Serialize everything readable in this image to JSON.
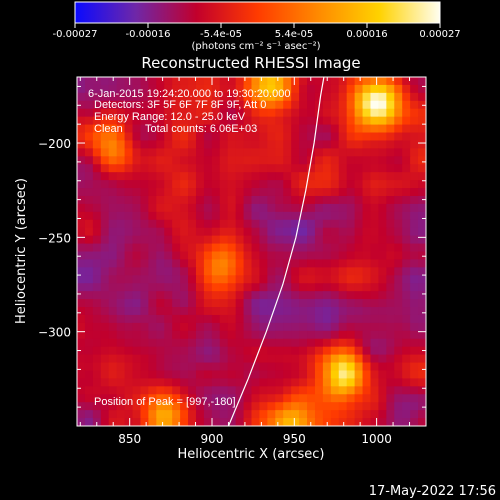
{
  "chart_data": {
    "type": "heatmap",
    "title": "Reconstructed RHESSI Image",
    "xlabel": "Heliocentric X (arcsec)",
    "ylabel": "Heliocentric Y (arcsec)",
    "xlim": [
      818,
      1030
    ],
    "ylim": [
      -350,
      -165
    ],
    "x_ticks": [
      850,
      900,
      950,
      1000
    ],
    "y_ticks": [
      -200,
      -250,
      -300
    ],
    "colorbar": {
      "range": [
        -0.00027,
        0.00027
      ],
      "tick_labels": [
        "-0.00027",
        "-0.00016",
        "-5.4e-05",
        "5.4e-05",
        "0.00016",
        "0.00027"
      ],
      "label": "(photons cm⁻² s⁻¹ asec⁻²)",
      "stops": [
        "#0a0aff",
        "#6f27a8",
        "#c2002c",
        "#ff3b00",
        "#ff8a00",
        "#ffd200",
        "#fffef0"
      ]
    },
    "annotations": {
      "time_range": "6-Jan-2015 19:24:20.000 to 19:30:20.000",
      "detectors": "Detectors: 3F 5F 6F 7F 8F 9F, Att 0",
      "energy": "Energy Range: 12.0 - 25.0 keV",
      "algorithm": "Clean",
      "counts": "Total counts: 6.06E+03",
      "peak": "Position of Peak = [997,-180]"
    },
    "peak": [
      997,
      -180
    ],
    "limb_curve": [
      [
        910,
        -350
      ],
      [
        922,
        -325
      ],
      [
        933,
        -300
      ],
      [
        943,
        -275
      ],
      [
        951,
        -250
      ],
      [
        957,
        -225
      ],
      [
        962,
        -200
      ],
      [
        966,
        -175
      ],
      [
        968,
        -165
      ]
    ],
    "sources": [
      {
        "x": 1000,
        "y": -178,
        "amp": 1.0
      },
      {
        "x": 980,
        "y": -322,
        "amp": 0.8
      },
      {
        "x": 936,
        "y": -170,
        "amp": 0.55
      },
      {
        "x": 872,
        "y": -345,
        "amp": 0.55
      },
      {
        "x": 948,
        "y": -350,
        "amp": 0.5
      },
      {
        "x": 840,
        "y": -200,
        "amp": 0.5
      },
      {
        "x": 905,
        "y": -265,
        "amp": 0.45
      }
    ]
  },
  "footer": {
    "timestamp": "17-May-2022 17:56"
  }
}
